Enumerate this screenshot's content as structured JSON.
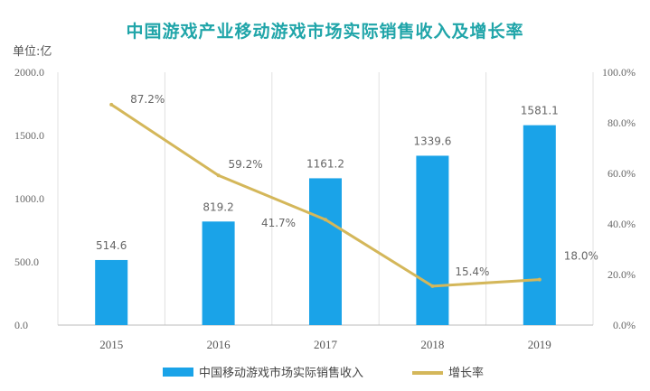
{
  "chart_data": {
    "type": "bar",
    "title": "中国游戏产业移动游戏市场实际销售收入及增长率",
    "unit_label": "单位:亿",
    "categories": [
      "2015",
      "2016",
      "2017",
      "2018",
      "2019"
    ],
    "series": [
      {
        "name": "中国移动游戏市场实际销售收入",
        "type": "bar",
        "axis": "left",
        "values": [
          514.6,
          819.2,
          1161.2,
          1339.6,
          1581.1
        ],
        "labels": [
          "514.6",
          "819.2",
          "1161.2",
          "1339.6",
          "1581.1"
        ],
        "color": "#1aa3e8"
      },
      {
        "name": "增长率",
        "type": "line",
        "axis": "right",
        "values": [
          87.2,
          59.2,
          41.7,
          15.4,
          18.0
        ],
        "labels": [
          "87.2%",
          "59.2%",
          "41.7%",
          "15.4%",
          "18.0%"
        ],
        "color": "#d4b75a"
      }
    ],
    "y_left": {
      "ylim": [
        0,
        2000
      ],
      "ticks": [
        "0.0",
        "500.0",
        "1000.0",
        "1500.0",
        "2000.0"
      ]
    },
    "y_right": {
      "ylim": [
        0,
        100
      ],
      "ticks": [
        "0.0%",
        "20.0%",
        "40.0%",
        "60.0%",
        "80.0%",
        "100.0%"
      ]
    },
    "grid": "vertical",
    "legend_position": "bottom"
  }
}
